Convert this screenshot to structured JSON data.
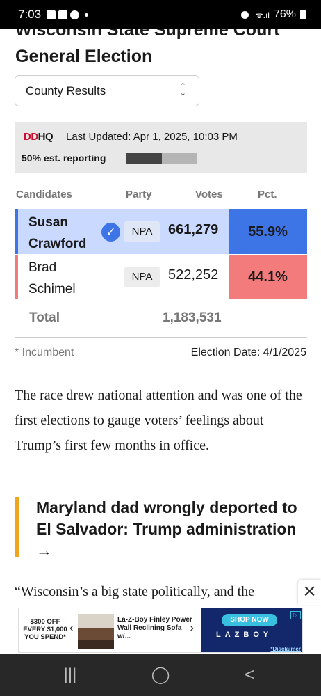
{
  "statusbar": {
    "time": "7:03",
    "battery": "76%"
  },
  "article": {
    "headline_line1": "Wisconsin State Supreme Court",
    "headline_line2": "General Election",
    "select_value": "County Results",
    "logo": {
      "part1": "DD",
      "part2": "HQ"
    },
    "last_updated": "Last Updated: Apr 1, 2025, 10:03 PM",
    "reporting_label": "50% est. reporting",
    "reporting_fraction": 0.5,
    "columns": {
      "candidates": "Candidates",
      "party": "Party",
      "votes": "Votes",
      "pct": "Pct."
    },
    "candidates": [
      {
        "first": "Susan",
        "last": "Crawford",
        "party": "NPA",
        "votes": "661,279",
        "pct": "55.9%",
        "winner": true,
        "color": "#3d74e6"
      },
      {
        "first": "Brad",
        "last": "Schimel",
        "party": "NPA",
        "votes": "522,252",
        "pct": "44.1%",
        "winner": false,
        "color": "#f47b7b"
      }
    ],
    "total_label": "Total",
    "total_votes": "1,183,531",
    "incumbent_note": "* Incumbent",
    "election_date": "Election Date: 4/1/2025",
    "paragraph": "The race drew national attention and was one of the first elections to gauge voters’ feelings about Trump’s first few months in office.",
    "related_title": "Maryland dad wrongly deported to El Salvador: Trump administration",
    "related_arrow": "→",
    "paragraph2": "“Wisconsin’s a big state politically, and the"
  },
  "ad": {
    "offer_line1": "$300 OFF",
    "offer_line2": "EVERY $1,000",
    "offer_line3": "YOU SPEND*",
    "product_title": "La-Z-Boy Finley Power Wall Reclining Sofa w/...",
    "cta": "SHOP NOW",
    "brand": "LAZBOY",
    "disclaimer": "*Disclaimer",
    "accent": "#13286a"
  },
  "navbar": {
    "recents": "|||",
    "home": "◯",
    "back": "<"
  }
}
